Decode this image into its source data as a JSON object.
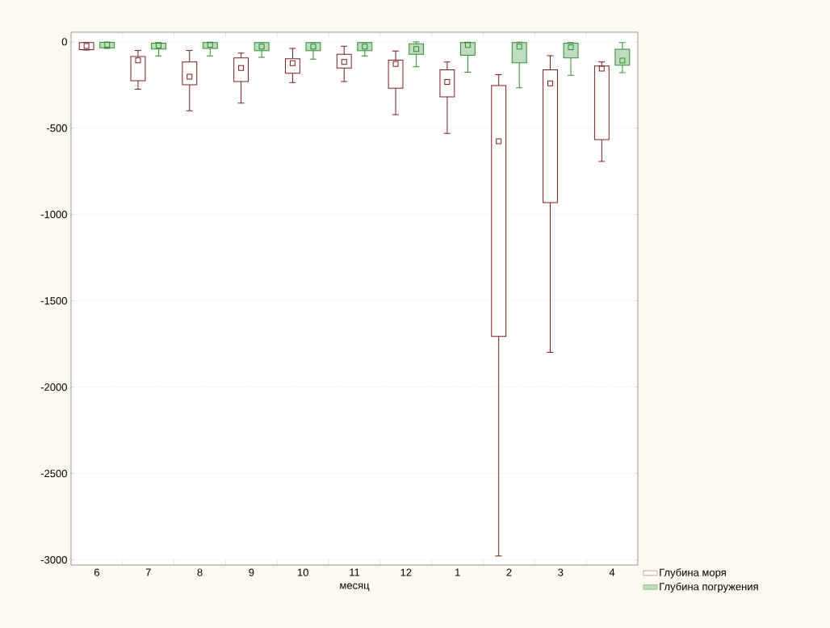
{
  "chart_data": {
    "type": "box",
    "xlabel": "месяц",
    "categories": [
      "6",
      "7",
      "8",
      "9",
      "10",
      "11",
      "12",
      "1",
      "2",
      "3",
      "4"
    ],
    "ylim": [
      -3030,
      55
    ],
    "yticks": [
      -3000,
      -2500,
      -2000,
      -1500,
      -1000,
      -500,
      0
    ],
    "grid": "y",
    "legend": "bottom right",
    "series": [
      {
        "name": "Глубина моря",
        "color": "#7a1e1e",
        "boxes": [
          {
            "low": -48,
            "q1": -45,
            "median": -25,
            "q3": -5,
            "high": -3
          },
          {
            "low": -275,
            "q1": -226,
            "median": -107,
            "q3": -85,
            "high": -50
          },
          {
            "low": -400,
            "q1": -249,
            "median": -202,
            "q3": -117,
            "high": -50
          },
          {
            "low": -355,
            "q1": -230,
            "median": -152,
            "q3": -93,
            "high": -65
          },
          {
            "low": -236,
            "q1": -182,
            "median": -124,
            "q3": -98,
            "high": -39
          },
          {
            "low": -230,
            "q1": -152,
            "median": -117,
            "q3": -73,
            "high": -26
          },
          {
            "low": -422,
            "q1": -269,
            "median": -128,
            "q3": -106,
            "high": -54
          },
          {
            "low": -530,
            "q1": -319,
            "median": -233,
            "q3": -163,
            "high": -117
          },
          {
            "low": -2977,
            "q1": -1706,
            "median": -576,
            "q3": -254,
            "high": -190
          },
          {
            "low": -1798,
            "q1": -931,
            "median": -241,
            "q3": -163,
            "high": -81
          },
          {
            "low": -693,
            "q1": -567,
            "median": -155,
            "q3": -140,
            "high": -117
          }
        ]
      },
      {
        "name": "Глубина погружения",
        "color": "#2e8b2e",
        "boxes": [
          {
            "low": -38,
            "q1": -35,
            "median": -18,
            "q3": -3,
            "high": -1
          },
          {
            "low": -82,
            "q1": -42,
            "median": -22,
            "q3": -8,
            "high": -5
          },
          {
            "low": -82,
            "q1": -38,
            "median": -18,
            "q3": -5,
            "high": -2
          },
          {
            "low": -90,
            "q1": -51,
            "median": -28,
            "q3": -5,
            "high": -5
          },
          {
            "low": -101,
            "q1": -51,
            "median": -28,
            "q3": -5,
            "high": -5
          },
          {
            "low": -82,
            "q1": -51,
            "median": -28,
            "q3": -5,
            "high": -5
          },
          {
            "low": -145,
            "q1": -73,
            "median": -42,
            "q3": -12,
            "high": -1
          },
          {
            "low": -176,
            "q1": -78,
            "median": -19,
            "q3": -5,
            "high": -2
          },
          {
            "low": -266,
            "q1": -121,
            "median": -28,
            "q3": -5,
            "high": -2
          },
          {
            "low": -194,
            "q1": -93,
            "median": -31,
            "q3": -8,
            "high": -5
          },
          {
            "low": -179,
            "q1": -135,
            "median": -109,
            "q3": -43,
            "high": -5
          }
        ]
      }
    ]
  }
}
